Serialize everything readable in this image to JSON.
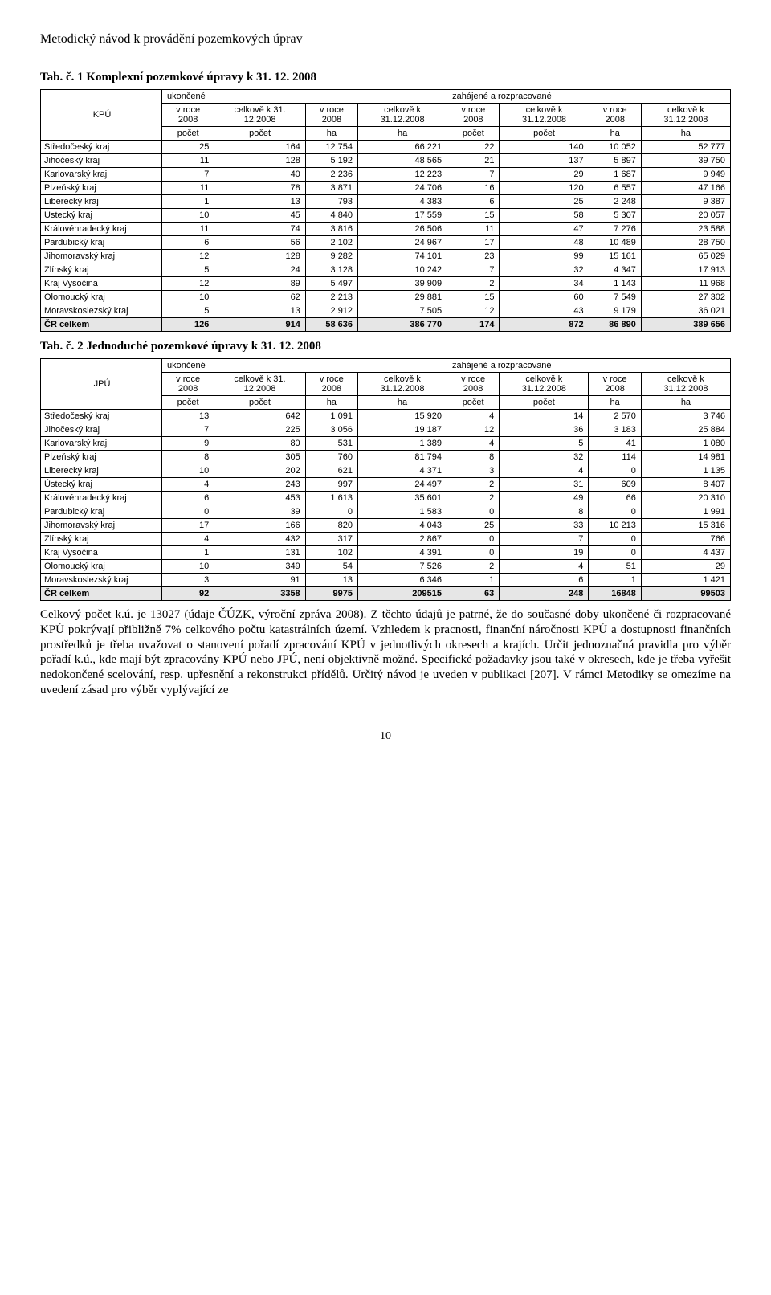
{
  "doc_header": "Metodický návod k provádění pozemkových úprav",
  "table1": {
    "title": "Tab. č. 1 Komplexní pozemkové úpravy k 31. 12. 2008",
    "type": "table",
    "header_bg": "#ffffff",
    "total_bg": "#e6e6e6",
    "corner_label": "KPÚ",
    "group_labels": [
      "ukončené",
      "zahájené a rozpracované"
    ],
    "subcols": [
      "v roce 2008",
      "celkově k 31. 12.2008",
      "v roce 2008",
      "celkově k 31.12.2008",
      "v roce 2008",
      "celkově k 31.12.2008",
      "v roce 2008",
      "celkově k 31.12.2008"
    ],
    "units": [
      "počet",
      "počet",
      "ha",
      "ha",
      "počet",
      "počet",
      "ha",
      "ha"
    ],
    "rows": [
      {
        "label": "Středočeský kraj",
        "v": [
          "25",
          "164",
          "12 754",
          "66 221",
          "22",
          "140",
          "10 052",
          "52 777"
        ]
      },
      {
        "label": "Jihočeský kraj",
        "v": [
          "11",
          "128",
          "5 192",
          "48 565",
          "21",
          "137",
          "5 897",
          "39 750"
        ]
      },
      {
        "label": "Karlovarský kraj",
        "v": [
          "7",
          "40",
          "2 236",
          "12 223",
          "7",
          "29",
          "1 687",
          "9 949"
        ]
      },
      {
        "label": "Plzeňský kraj",
        "v": [
          "11",
          "78",
          "3 871",
          "24 706",
          "16",
          "120",
          "6 557",
          "47 166"
        ]
      },
      {
        "label": "Liberecký kraj",
        "v": [
          "1",
          "13",
          "793",
          "4 383",
          "6",
          "25",
          "2 248",
          "9 387"
        ]
      },
      {
        "label": "Ústecký kraj",
        "v": [
          "10",
          "45",
          "4 840",
          "17 559",
          "15",
          "58",
          "5 307",
          "20 057"
        ]
      },
      {
        "label": "Královéhradecký kraj",
        "v": [
          "11",
          "74",
          "3 816",
          "26 506",
          "11",
          "47",
          "7 276",
          "23 588"
        ]
      },
      {
        "label": "Pardubický kraj",
        "v": [
          "6",
          "56",
          "2 102",
          "24 967",
          "17",
          "48",
          "10 489",
          "28 750"
        ]
      },
      {
        "label": "Jihomoravský kraj",
        "v": [
          "12",
          "128",
          "9 282",
          "74 101",
          "23",
          "99",
          "15 161",
          "65 029"
        ]
      },
      {
        "label": "Zlínský kraj",
        "v": [
          "5",
          "24",
          "3 128",
          "10 242",
          "7",
          "32",
          "4 347",
          "17 913"
        ]
      },
      {
        "label": "Kraj Vysočina",
        "v": [
          "12",
          "89",
          "5 497",
          "39 909",
          "2",
          "34",
          "1 143",
          "11 968"
        ]
      },
      {
        "label": "Olomoucký kraj",
        "v": [
          "10",
          "62",
          "2 213",
          "29 881",
          "15",
          "60",
          "7 549",
          "27 302"
        ]
      },
      {
        "label": "Moravskoslezský kraj",
        "v": [
          "5",
          "13",
          "2 912",
          "7 505",
          "12",
          "43",
          "9 179",
          "36 021"
        ]
      }
    ],
    "total": {
      "label": "ČR celkem",
      "v": [
        "126",
        "914",
        "58 636",
        "386 770",
        "174",
        "872",
        "86 890",
        "389 656"
      ]
    }
  },
  "table2": {
    "title": "Tab. č. 2 Jednoduché pozemkové úpravy k 31. 12. 2008",
    "type": "table",
    "header_bg": "#ffffff",
    "total_bg": "#e6e6e6",
    "corner_label": "JPÚ",
    "group_labels": [
      "ukončené",
      "zahájené a rozpracované"
    ],
    "subcols": [
      "v roce 2008",
      "celkově k 31. 12.2008",
      "v roce 2008",
      "celkově k 31.12.2008",
      "v roce 2008",
      "celkově k 31.12.2008",
      "v roce 2008",
      "celkově k 31.12.2008"
    ],
    "units": [
      "počet",
      "počet",
      "ha",
      "ha",
      "počet",
      "počet",
      "ha",
      "ha"
    ],
    "rows": [
      {
        "label": "Středočeský kraj",
        "v": [
          "13",
          "642",
          "1 091",
          "15 920",
          "4",
          "14",
          "2 570",
          "3 746"
        ]
      },
      {
        "label": "Jihočeský kraj",
        "v": [
          "7",
          "225",
          "3 056",
          "19 187",
          "12",
          "36",
          "3 183",
          "25 884"
        ]
      },
      {
        "label": "Karlovarský kraj",
        "v": [
          "9",
          "80",
          "531",
          "1 389",
          "4",
          "5",
          "41",
          "1 080"
        ]
      },
      {
        "label": "Plzeňský kraj",
        "v": [
          "8",
          "305",
          "760",
          "81 794",
          "8",
          "32",
          "114",
          "14 981"
        ]
      },
      {
        "label": "Liberecký kraj",
        "v": [
          "10",
          "202",
          "621",
          "4 371",
          "3",
          "4",
          "0",
          "1 135"
        ]
      },
      {
        "label": "Ústecký kraj",
        "v": [
          "4",
          "243",
          "997",
          "24 497",
          "2",
          "31",
          "609",
          "8 407"
        ]
      },
      {
        "label": "Královéhradecký kraj",
        "v": [
          "6",
          "453",
          "1 613",
          "35 601",
          "2",
          "49",
          "66",
          "20 310"
        ]
      },
      {
        "label": "Pardubický kraj",
        "v": [
          "0",
          "39",
          "0",
          "1 583",
          "0",
          "8",
          "0",
          "1 991"
        ]
      },
      {
        "label": "Jihomoravský kraj",
        "v": [
          "17",
          "166",
          "820",
          "4 043",
          "25",
          "33",
          "10 213",
          "15 316"
        ]
      },
      {
        "label": "Zlínský kraj",
        "v": [
          "4",
          "432",
          "317",
          "2 867",
          "0",
          "7",
          "0",
          "766"
        ]
      },
      {
        "label": "Kraj Vysočina",
        "v": [
          "1",
          "131",
          "102",
          "4 391",
          "0",
          "19",
          "0",
          "4 437"
        ]
      },
      {
        "label": "Olomoucký kraj",
        "v": [
          "10",
          "349",
          "54",
          "7 526",
          "2",
          "4",
          "51",
          "29"
        ]
      },
      {
        "label": "Moravskoslezský kraj",
        "v": [
          "3",
          "91",
          "13",
          "6 346",
          "1",
          "6",
          "1",
          "1 421"
        ]
      }
    ],
    "total": {
      "label": "ČR celkem",
      "v": [
        "92",
        "3358",
        "9975",
        "209515",
        "63",
        "248",
        "16848",
        "99503"
      ]
    }
  },
  "body_paragraph": "Celkový počet k.ú. je 13027 (údaje ČÚZK, výroční zpráva 2008). Z těchto údajů je patrné, že do současné doby ukončené či rozpracované KPÚ pokrývají přibližně 7% celkového počtu katastrálních území. Vzhledem k pracnosti, finanční náročnosti KPÚ a dostupnosti finančních prostředků je třeba uvažovat o stanovení pořadí zpracování KPÚ v jednotlivých okresech a krajích. Určit jednoznačná pravidla pro výběr pořadí k.ú., kde mají být zpracovány KPÚ nebo JPÚ, není objektivně možné. Specifické požadavky jsou také v okresech, kde je třeba vyřešit nedokončené scelování, resp. upřesnění a rekonstrukci přídělů. Určitý návod je uveden v publikaci [207]. V rámci Metodiky se omezíme na uvedení zásad pro výběr vyplývající ze",
  "page_number": "10"
}
